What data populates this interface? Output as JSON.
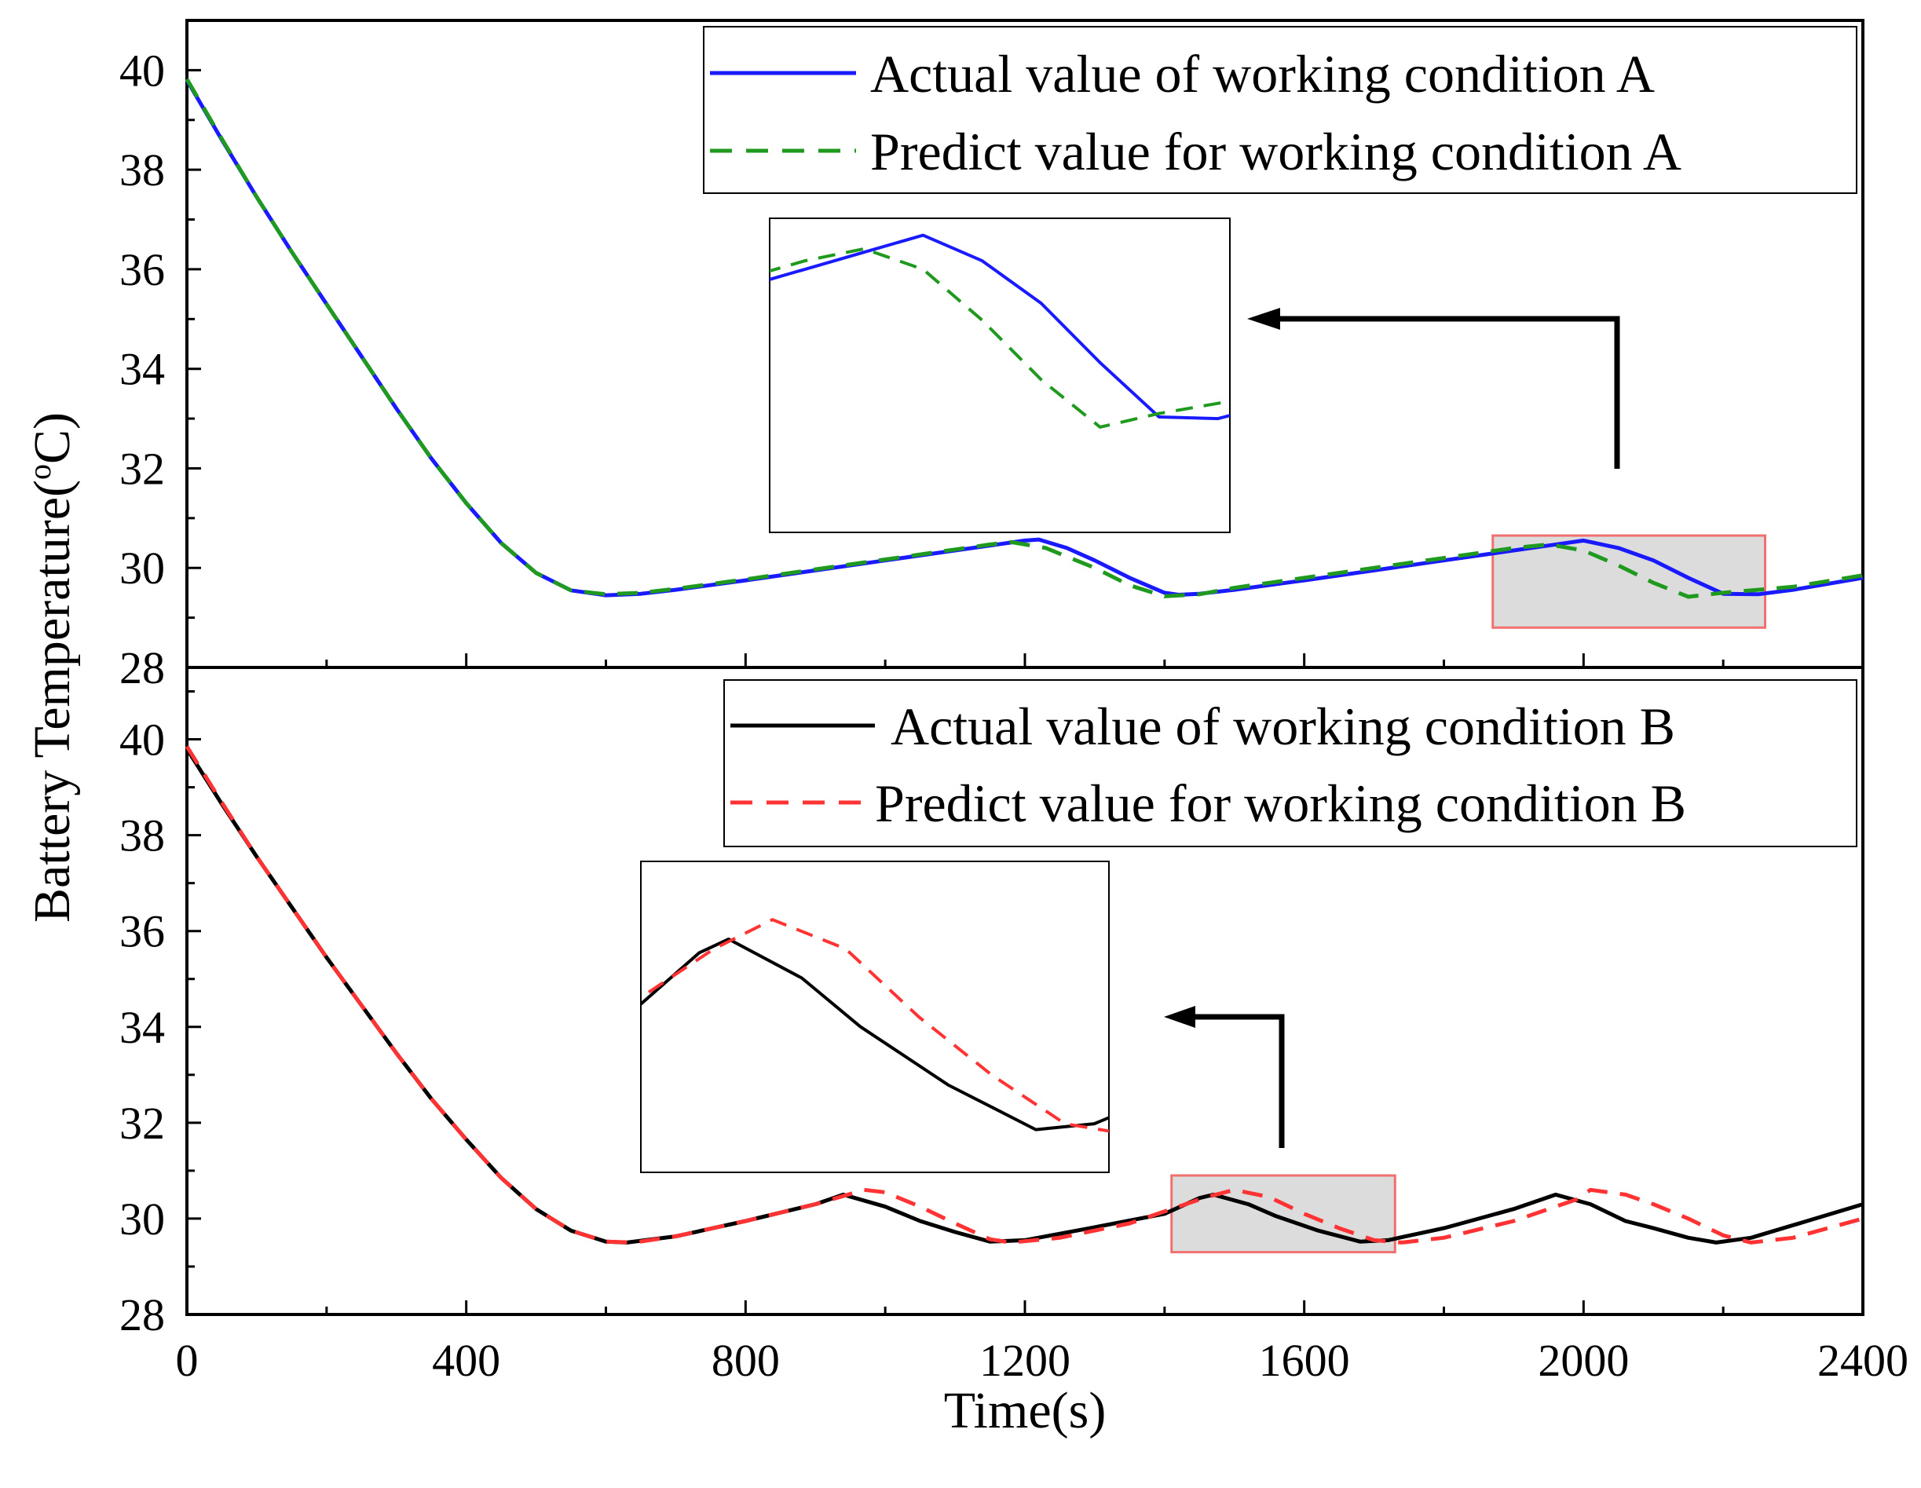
{
  "chart_data": {
    "type": "line",
    "xlabel": "Time(s)",
    "ylabel": "Battery Temperature(",
    "ylabel_sup": "o",
    "ylabel_tail": "C)",
    "xlim": [
      0,
      2400
    ],
    "xticks": [
      "0",
      "400",
      "800",
      "1200",
      "1600",
      "2000",
      "2400"
    ],
    "panels": [
      {
        "id": "A",
        "ylim": [
          28,
          41
        ],
        "yticks": [
          "28",
          "30",
          "32",
          "34",
          "36",
          "38",
          "40"
        ],
        "series": [
          {
            "name": "Actual value of working condition A",
            "color": "#1a1aff",
            "dash": "solid",
            "points": [
              [
                0,
                39.8
              ],
              [
                50,
                38.6
              ],
              [
                100,
                37.45
              ],
              [
                150,
                36.35
              ],
              [
                200,
                35.3
              ],
              [
                250,
                34.25
              ],
              [
                300,
                33.2
              ],
              [
                350,
                32.2
              ],
              [
                400,
                31.3
              ],
              [
                450,
                30.5
              ],
              [
                500,
                29.9
              ],
              [
                550,
                29.55
              ],
              [
                600,
                29.45
              ],
              [
                650,
                29.48
              ],
              [
                700,
                29.56
              ],
              [
                800,
                29.75
              ],
              [
                900,
                29.95
              ],
              [
                1000,
                30.15
              ],
              [
                1100,
                30.35
              ],
              [
                1200,
                30.55
              ],
              [
                1220,
                30.57
              ],
              [
                1260,
                30.4
              ],
              [
                1300,
                30.15
              ],
              [
                1350,
                29.8
              ],
              [
                1400,
                29.5
              ],
              [
                1420,
                29.46
              ],
              [
                1450,
                29.48
              ],
              [
                1500,
                29.56
              ],
              [
                1600,
                29.75
              ],
              [
                1700,
                29.95
              ],
              [
                1800,
                30.15
              ],
              [
                1900,
                30.35
              ],
              [
                1950,
                30.45
              ],
              [
                2000,
                30.55
              ],
              [
                2050,
                30.4
              ],
              [
                2100,
                30.15
              ],
              [
                2150,
                29.8
              ],
              [
                2200,
                29.48
              ],
              [
                2250,
                29.47
              ],
              [
                2300,
                29.56
              ],
              [
                2400,
                29.8
              ]
            ]
          },
          {
            "name": "Predict value for working condition A",
            "color": "#1f9a1f",
            "dash": "dashed",
            "points": [
              [
                0,
                39.82
              ],
              [
                50,
                38.62
              ],
              [
                100,
                37.45
              ],
              [
                150,
                36.35
              ],
              [
                200,
                35.3
              ],
              [
                250,
                34.25
              ],
              [
                300,
                33.2
              ],
              [
                350,
                32.2
              ],
              [
                400,
                31.3
              ],
              [
                450,
                30.5
              ],
              [
                500,
                29.9
              ],
              [
                550,
                29.55
              ],
              [
                600,
                29.47
              ],
              [
                650,
                29.5
              ],
              [
                700,
                29.58
              ],
              [
                800,
                29.77
              ],
              [
                900,
                29.97
              ],
              [
                1000,
                30.17
              ],
              [
                1100,
                30.37
              ],
              [
                1150,
                30.47
              ],
              [
                1180,
                30.52
              ],
              [
                1230,
                30.4
              ],
              [
                1300,
                30.0
              ],
              [
                1350,
                29.65
              ],
              [
                1400,
                29.43
              ],
              [
                1450,
                29.47
              ],
              [
                1500,
                29.6
              ],
              [
                1600,
                29.8
              ],
              [
                1700,
                30.0
              ],
              [
                1800,
                30.2
              ],
              [
                1900,
                30.4
              ],
              [
                1950,
                30.47
              ],
              [
                2000,
                30.35
              ],
              [
                2050,
                30.05
              ],
              [
                2100,
                29.7
              ],
              [
                2150,
                29.42
              ],
              [
                2200,
                29.5
              ],
              [
                2300,
                29.62
              ],
              [
                2400,
                29.85
              ]
            ]
          }
        ],
        "inset": {
          "x_range": [
            1870,
            2260
          ],
          "y_range": [
            28.8,
            30.65
          ]
        }
      },
      {
        "id": "B",
        "ylim": [
          28,
          41.5
        ],
        "yticks": [
          "28",
          "30",
          "32",
          "34",
          "36",
          "38",
          "40"
        ],
        "series": [
          {
            "name": "Actual value of working condition B",
            "color": "#000000",
            "dash": "solid",
            "points": [
              [
                0,
                39.8
              ],
              [
                50,
                38.65
              ],
              [
                100,
                37.55
              ],
              [
                150,
                36.5
              ],
              [
                200,
                35.45
              ],
              [
                250,
                34.45
              ],
              [
                300,
                33.45
              ],
              [
                350,
                32.5
              ],
              [
                400,
                31.65
              ],
              [
                450,
                30.85
              ],
              [
                500,
                30.2
              ],
              [
                550,
                29.75
              ],
              [
                600,
                29.52
              ],
              [
                630,
                29.5
              ],
              [
                700,
                29.63
              ],
              [
                800,
                29.95
              ],
              [
                900,
                30.3
              ],
              [
                940,
                30.5
              ],
              [
                1000,
                30.25
              ],
              [
                1050,
                29.95
              ],
              [
                1100,
                29.72
              ],
              [
                1150,
                29.52
              ],
              [
                1200,
                29.55
              ],
              [
                1300,
                29.82
              ],
              [
                1400,
                30.1
              ],
              [
                1450,
                30.43
              ],
              [
                1470,
                30.5
              ],
              [
                1520,
                30.3
              ],
              [
                1560,
                30.05
              ],
              [
                1620,
                29.75
              ],
              [
                1680,
                29.52
              ],
              [
                1720,
                29.55
              ],
              [
                1800,
                29.8
              ],
              [
                1900,
                30.2
              ],
              [
                1960,
                30.5
              ],
              [
                2010,
                30.3
              ],
              [
                2060,
                29.95
              ],
              [
                2100,
                29.8
              ],
              [
                2150,
                29.6
              ],
              [
                2190,
                29.5
              ],
              [
                2240,
                29.6
              ],
              [
                2320,
                29.95
              ],
              [
                2400,
                30.3
              ]
            ]
          },
          {
            "name": "Predict value for working condition B",
            "color": "#ff3333",
            "dash": "dashed",
            "points": [
              [
                0,
                39.85
              ],
              [
                50,
                38.68
              ],
              [
                100,
                37.55
              ],
              [
                150,
                36.5
              ],
              [
                200,
                35.45
              ],
              [
                250,
                34.45
              ],
              [
                300,
                33.45
              ],
              [
                350,
                32.5
              ],
              [
                400,
                31.65
              ],
              [
                450,
                30.85
              ],
              [
                500,
                30.2
              ],
              [
                550,
                29.75
              ],
              [
                600,
                29.52
              ],
              [
                640,
                29.5
              ],
              [
                700,
                29.63
              ],
              [
                800,
                29.95
              ],
              [
                900,
                30.3
              ],
              [
                970,
                30.6
              ],
              [
                1000,
                30.55
              ],
              [
                1050,
                30.25
              ],
              [
                1100,
                29.9
              ],
              [
                1150,
                29.57
              ],
              [
                1180,
                29.5
              ],
              [
                1250,
                29.6
              ],
              [
                1350,
                29.9
              ],
              [
                1400,
                30.15
              ],
              [
                1460,
                30.45
              ],
              [
                1500,
                30.6
              ],
              [
                1550,
                30.45
              ],
              [
                1600,
                30.1
              ],
              [
                1650,
                29.8
              ],
              [
                1700,
                29.55
              ],
              [
                1740,
                29.5
              ],
              [
                1800,
                29.6
              ],
              [
                1900,
                29.95
              ],
              [
                1990,
                30.4
              ],
              [
                2010,
                30.6
              ],
              [
                2060,
                30.5
              ],
              [
                2100,
                30.3
              ],
              [
                2150,
                30.0
              ],
              [
                2200,
                29.65
              ],
              [
                2240,
                29.5
              ],
              [
                2300,
                29.6
              ],
              [
                2350,
                29.8
              ],
              [
                2400,
                30.0
              ]
            ]
          }
        ],
        "inset": {
          "x_range": [
            1410,
            1730
          ],
          "y_range": [
            29.3,
            30.9
          ]
        }
      }
    ]
  }
}
